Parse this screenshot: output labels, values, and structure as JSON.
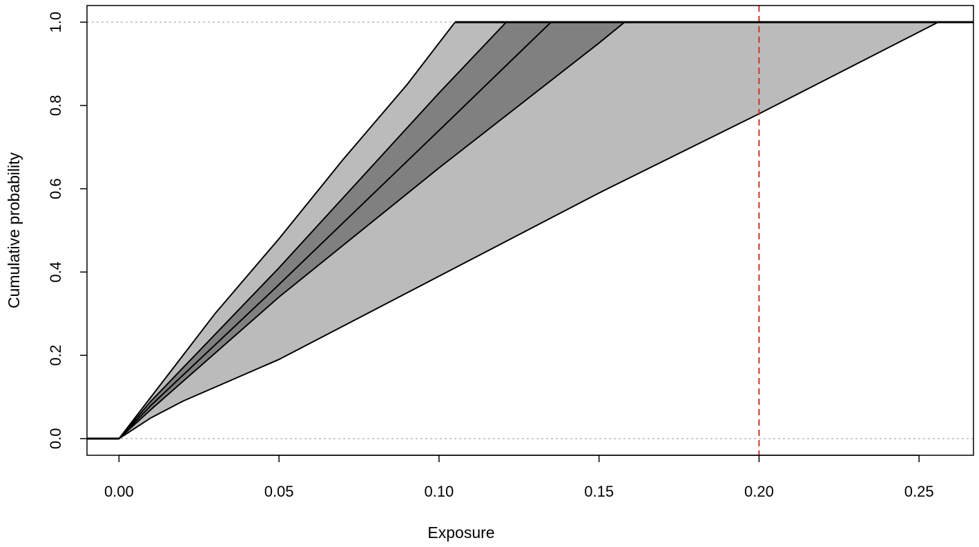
{
  "chart_data": {
    "type": "area",
    "title": "",
    "xlabel": "Exposure",
    "ylabel": "Cumulative probability",
    "xlim": [
      -0.01,
      0.267
    ],
    "ylim": [
      -0.04,
      1.04
    ],
    "x_ticks": [
      0.0,
      0.05,
      0.1,
      0.15,
      0.2,
      0.25
    ],
    "x_tick_labels": [
      "0.00",
      "0.05",
      "0.10",
      "0.15",
      "0.20",
      "0.25"
    ],
    "y_ticks": [
      0.0,
      0.2,
      0.4,
      0.6,
      0.8,
      1.0
    ],
    "y_tick_labels": [
      "0.0",
      "0.2",
      "0.4",
      "0.6",
      "0.8",
      "1.0"
    ],
    "grid": false,
    "reference_lines": {
      "horizontal": [
        {
          "y": 0.0,
          "color": "#aaaaaa",
          "style": "dotted"
        },
        {
          "y": 1.0,
          "color": "#aaaaaa",
          "style": "dotted"
        }
      ],
      "vertical": [
        {
          "x": 0.2,
          "color": "#cc3322",
          "style": "dashed"
        }
      ]
    },
    "bands": [
      {
        "role": "outer",
        "color": "#bbbbbb",
        "upper": {
          "x": [
            -0.01,
            0.0,
            0.01,
            0.02,
            0.03,
            0.05,
            0.07,
            0.09,
            0.105,
            0.267
          ],
          "y": [
            0.0,
            0.0,
            0.1,
            0.2,
            0.3,
            0.48,
            0.67,
            0.85,
            1.0,
            1.0
          ]
        },
        "lower": {
          "x": [
            -0.01,
            0.0,
            0.01,
            0.02,
            0.05,
            0.1,
            0.15,
            0.2,
            0.256,
            0.267
          ],
          "y": [
            0.0,
            0.0,
            0.05,
            0.09,
            0.19,
            0.39,
            0.59,
            0.78,
            1.0,
            1.0
          ]
        }
      },
      {
        "role": "inner",
        "color": "#808080",
        "upper": {
          "x": [
            -0.01,
            0.0,
            0.01,
            0.05,
            0.1,
            0.121,
            0.267
          ],
          "y": [
            0.0,
            0.0,
            0.09,
            0.41,
            0.83,
            1.0,
            1.0
          ]
        },
        "lower": {
          "x": [
            -0.01,
            0.0,
            0.01,
            0.05,
            0.1,
            0.15,
            0.158,
            0.267
          ],
          "y": [
            0.0,
            0.0,
            0.07,
            0.34,
            0.65,
            0.95,
            1.0,
            1.0
          ]
        }
      }
    ],
    "series": [
      {
        "role": "median",
        "color": "#000000",
        "x": [
          -0.01,
          0.0,
          0.01,
          0.05,
          0.1,
          0.135,
          0.267
        ],
        "y": [
          0.0,
          0.0,
          0.08,
          0.37,
          0.74,
          1.0,
          1.0
        ]
      }
    ]
  }
}
